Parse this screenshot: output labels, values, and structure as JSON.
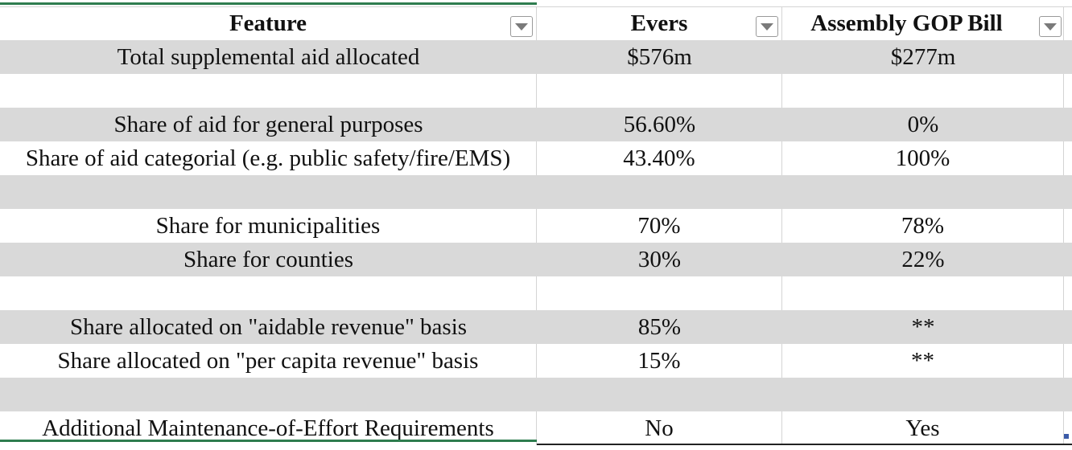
{
  "table": {
    "headers": [
      "Feature",
      "Evers",
      "Assembly GOP Bill"
    ],
    "rows": [
      {
        "feature": "Total supplemental aid allocated",
        "evers": "$576m",
        "gop": "$277m"
      },
      {
        "feature": "",
        "evers": "",
        "gop": ""
      },
      {
        "feature": "Share of aid for general purposes",
        "evers": "56.60%",
        "gop": "0%"
      },
      {
        "feature": "Share of aid categorial (e.g. public safety/fire/EMS)",
        "evers": "43.40%",
        "gop": "100%"
      },
      {
        "feature": "",
        "evers": "",
        "gop": ""
      },
      {
        "feature": "Share for municipalities",
        "evers": "70%",
        "gop": "78%"
      },
      {
        "feature": "Share for counties",
        "evers": "30%",
        "gop": "22%"
      },
      {
        "feature": "",
        "evers": "",
        "gop": ""
      },
      {
        "feature": "Share allocated on \"aidable revenue\" basis",
        "evers": "85%",
        "gop": "**"
      },
      {
        "feature": "Share allocated on \"per capita revenue\" basis",
        "evers": "15%",
        "gop": "**"
      },
      {
        "feature": "",
        "evers": "",
        "gop": ""
      },
      {
        "feature": "Additional Maintenance-of-Effort Requirements",
        "evers": "No",
        "gop": "Yes"
      }
    ]
  },
  "colors": {
    "banded_row": "#d9d9d9",
    "frame_accent": "#2e7d4f",
    "gridline": "#d4d4d4"
  },
  "icons": {
    "filter_dropdown": "chevron-down-icon"
  }
}
